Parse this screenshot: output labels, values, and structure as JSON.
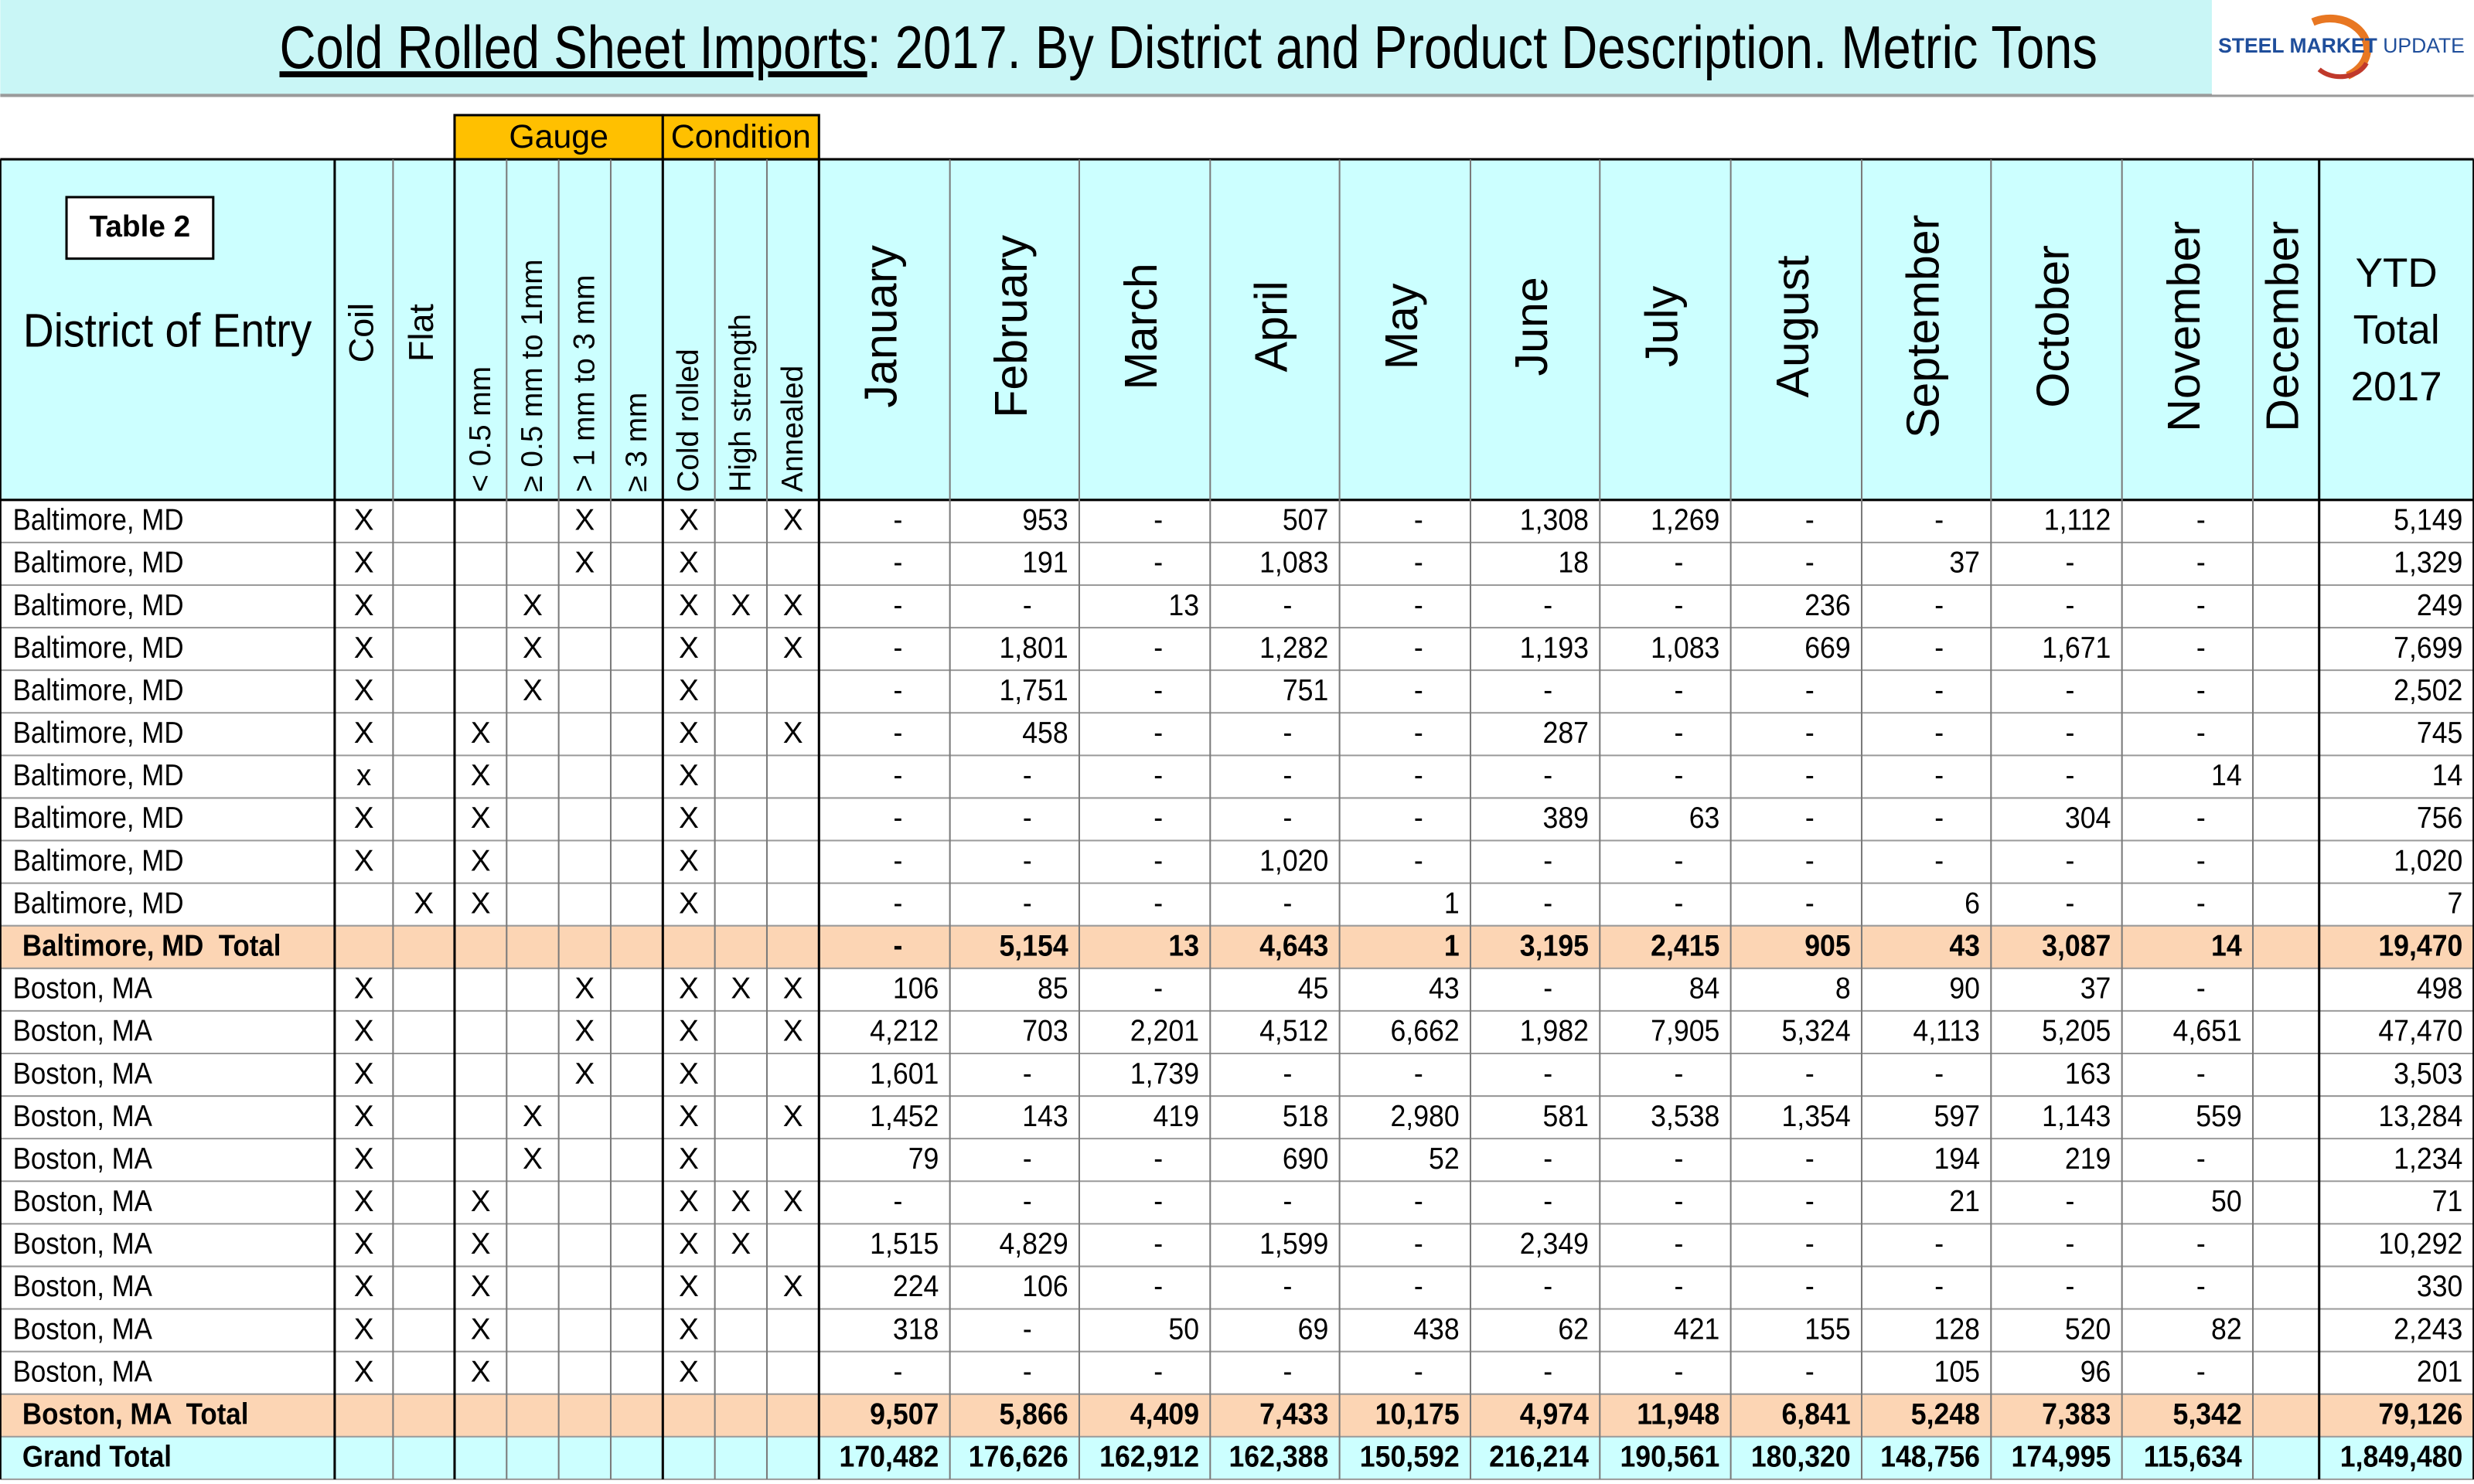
{
  "title": {
    "main": "Cold Rolled Sheet Imports",
    "rest": ": 2017. By District and Product Description. Metric Tons"
  },
  "logo": {
    "brand": "STEEL MARKET",
    "suffix": "UPDATE"
  },
  "table": {
    "label": "Table 2",
    "groups": [
      "Gauge",
      "Condition"
    ],
    "columns": [
      "District of Entry",
      "Coil",
      "Flat",
      "< 0.5 mm",
      "≥ 0.5 mm to 1mm",
      "> 1 mm to 3 mm",
      "≥ 3 mm",
      "Cold rolled",
      "High strength",
      "Annealed",
      "January",
      "February",
      "March",
      "April",
      "May",
      "June",
      "July",
      "August",
      "September",
      "October",
      "November",
      "December",
      [
        "YTD",
        "Total",
        "2017"
      ]
    ],
    "sections": [
      {
        "rows": [
          [
            "Baltimore, MD",
            "X",
            null,
            null,
            null,
            "X",
            null,
            "X",
            null,
            "X",
            "-",
            "953",
            "-",
            "507",
            "-",
            "1,308",
            "1,269",
            "-",
            "-",
            "1,112",
            "-",
            null,
            "5,149"
          ],
          [
            "Baltimore, MD",
            "X",
            null,
            null,
            null,
            "X",
            null,
            "X",
            null,
            null,
            "-",
            "191",
            "-",
            "1,083",
            "-",
            "18",
            "-",
            "-",
            "37",
            "-",
            "-",
            null,
            "1,329"
          ],
          [
            "Baltimore, MD",
            "X",
            null,
            null,
            "X",
            null,
            null,
            "X",
            "X",
            "X",
            "-",
            "-",
            "13",
            "-",
            "-",
            "-",
            "-",
            "236",
            "-",
            "-",
            "-",
            null,
            "249"
          ],
          [
            "Baltimore, MD",
            "X",
            null,
            null,
            "X",
            null,
            null,
            "X",
            null,
            "X",
            "-",
            "1,801",
            "-",
            "1,282",
            "-",
            "1,193",
            "1,083",
            "669",
            "-",
            "1,671",
            "-",
            null,
            "7,699"
          ],
          [
            "Baltimore, MD",
            "X",
            null,
            null,
            "X",
            null,
            null,
            "X",
            null,
            null,
            "-",
            "1,751",
            "-",
            "751",
            "-",
            "-",
            "-",
            "-",
            "-",
            "-",
            "-",
            null,
            "2,502"
          ],
          [
            "Baltimore, MD",
            "X",
            null,
            "X",
            null,
            null,
            null,
            "X",
            null,
            "X",
            "-",
            "458",
            "-",
            "-",
            "-",
            "287",
            "-",
            "-",
            "-",
            "-",
            "-",
            null,
            "745"
          ],
          [
            "Baltimore, MD",
            "x",
            null,
            "X",
            null,
            null,
            null,
            "X",
            null,
            null,
            "-",
            "-",
            "-",
            "-",
            "-",
            "-",
            "-",
            "-",
            "-",
            "-",
            "14",
            null,
            "14"
          ],
          [
            "Baltimore, MD",
            "X",
            null,
            "X",
            null,
            null,
            null,
            "X",
            null,
            null,
            "-",
            "-",
            "-",
            "-",
            "-",
            "389",
            "63",
            "-",
            "-",
            "304",
            "-",
            null,
            "756"
          ],
          [
            "Baltimore, MD",
            "X",
            null,
            "X",
            null,
            null,
            null,
            "X",
            null,
            null,
            "-",
            "-",
            "-",
            "1,020",
            "-",
            "-",
            "-",
            "-",
            "-",
            "-",
            "-",
            null,
            "1,020"
          ],
          [
            "Baltimore, MD",
            null,
            "X",
            "X",
            null,
            null,
            null,
            "X",
            null,
            null,
            "-",
            "-",
            "-",
            "-",
            "1",
            "-",
            "-",
            "-",
            "6",
            "-",
            "-",
            null,
            "7"
          ]
        ],
        "total": [
          "Baltimore, MD  Total",
          null,
          null,
          null,
          null,
          null,
          null,
          null,
          null,
          null,
          "-",
          "5,154",
          "13",
          "4,643",
          "1",
          "3,195",
          "2,415",
          "905",
          "43",
          "3,087",
          "14",
          null,
          "19,470"
        ]
      },
      {
        "rows": [
          [
            "Boston, MA",
            "X",
            null,
            null,
            null,
            "X",
            null,
            "X",
            "X",
            "X",
            "106",
            "85",
            "-",
            "45",
            "43",
            "-",
            "84",
            "8",
            "90",
            "37",
            "-",
            null,
            "498"
          ],
          [
            "Boston, MA",
            "X",
            null,
            null,
            null,
            "X",
            null,
            "X",
            null,
            "X",
            "4,212",
            "703",
            "2,201",
            "4,512",
            "6,662",
            "1,982",
            "7,905",
            "5,324",
            "4,113",
            "5,205",
            "4,651",
            null,
            "47,470"
          ],
          [
            "Boston, MA",
            "X",
            null,
            null,
            null,
            "X",
            null,
            "X",
            null,
            null,
            "1,601",
            "-",
            "1,739",
            "-",
            "-",
            "-",
            "-",
            "-",
            "-",
            "163",
            "-",
            null,
            "3,503"
          ],
          [
            "Boston, MA",
            "X",
            null,
            null,
            "X",
            null,
            null,
            "X",
            null,
            "X",
            "1,452",
            "143",
            "419",
            "518",
            "2,980",
            "581",
            "3,538",
            "1,354",
            "597",
            "1,143",
            "559",
            null,
            "13,284"
          ],
          [
            "Boston, MA",
            "X",
            null,
            null,
            "X",
            null,
            null,
            "X",
            null,
            null,
            "79",
            "-",
            "-",
            "690",
            "52",
            "-",
            "-",
            "-",
            "194",
            "219",
            "-",
            null,
            "1,234"
          ],
          [
            "Boston, MA",
            "X",
            null,
            "X",
            null,
            null,
            null,
            "X",
            "X",
            "X",
            "-",
            "-",
            "-",
            "-",
            "-",
            "-",
            "-",
            "-",
            "21",
            "-",
            "50",
            null,
            "71"
          ],
          [
            "Boston, MA",
            "X",
            null,
            "X",
            null,
            null,
            null,
            "X",
            "X",
            null,
            "1,515",
            "4,829",
            "-",
            "1,599",
            "-",
            "2,349",
            "-",
            "-",
            "-",
            "-",
            "-",
            null,
            "10,292"
          ],
          [
            "Boston, MA",
            "X",
            null,
            "X",
            null,
            null,
            null,
            "X",
            null,
            "X",
            "224",
            "106",
            "-",
            "-",
            "-",
            "-",
            "-",
            "-",
            "-",
            "-",
            "-",
            null,
            "330"
          ],
          [
            "Boston, MA",
            "X",
            null,
            "X",
            null,
            null,
            null,
            "X",
            null,
            null,
            "318",
            "-",
            "50",
            "69",
            "438",
            "62",
            "421",
            "155",
            "128",
            "520",
            "82",
            null,
            "2,243"
          ],
          [
            "Boston, MA",
            "X",
            null,
            "X",
            null,
            null,
            null,
            "X",
            null,
            null,
            "-",
            "-",
            "-",
            "-",
            "-",
            "-",
            "-",
            "-",
            "105",
            "96",
            "-",
            null,
            "201"
          ]
        ],
        "total": [
          "Boston, MA  Total",
          null,
          null,
          null,
          null,
          null,
          null,
          null,
          null,
          null,
          "9,507",
          "5,866",
          "4,409",
          "7,433",
          "10,175",
          "4,974",
          "11,948",
          "6,841",
          "5,248",
          "7,383",
          "5,342",
          null,
          "79,126"
        ]
      }
    ],
    "grand_total": [
      "Grand Total",
      null,
      null,
      null,
      null,
      null,
      null,
      null,
      null,
      null,
      "170,482",
      "176,626",
      "162,912",
      "162,388",
      "150,592",
      "216,214",
      "190,561",
      "180,320",
      "148,756",
      "174,995",
      "115,634",
      null,
      "1,849,480"
    ]
  }
}
